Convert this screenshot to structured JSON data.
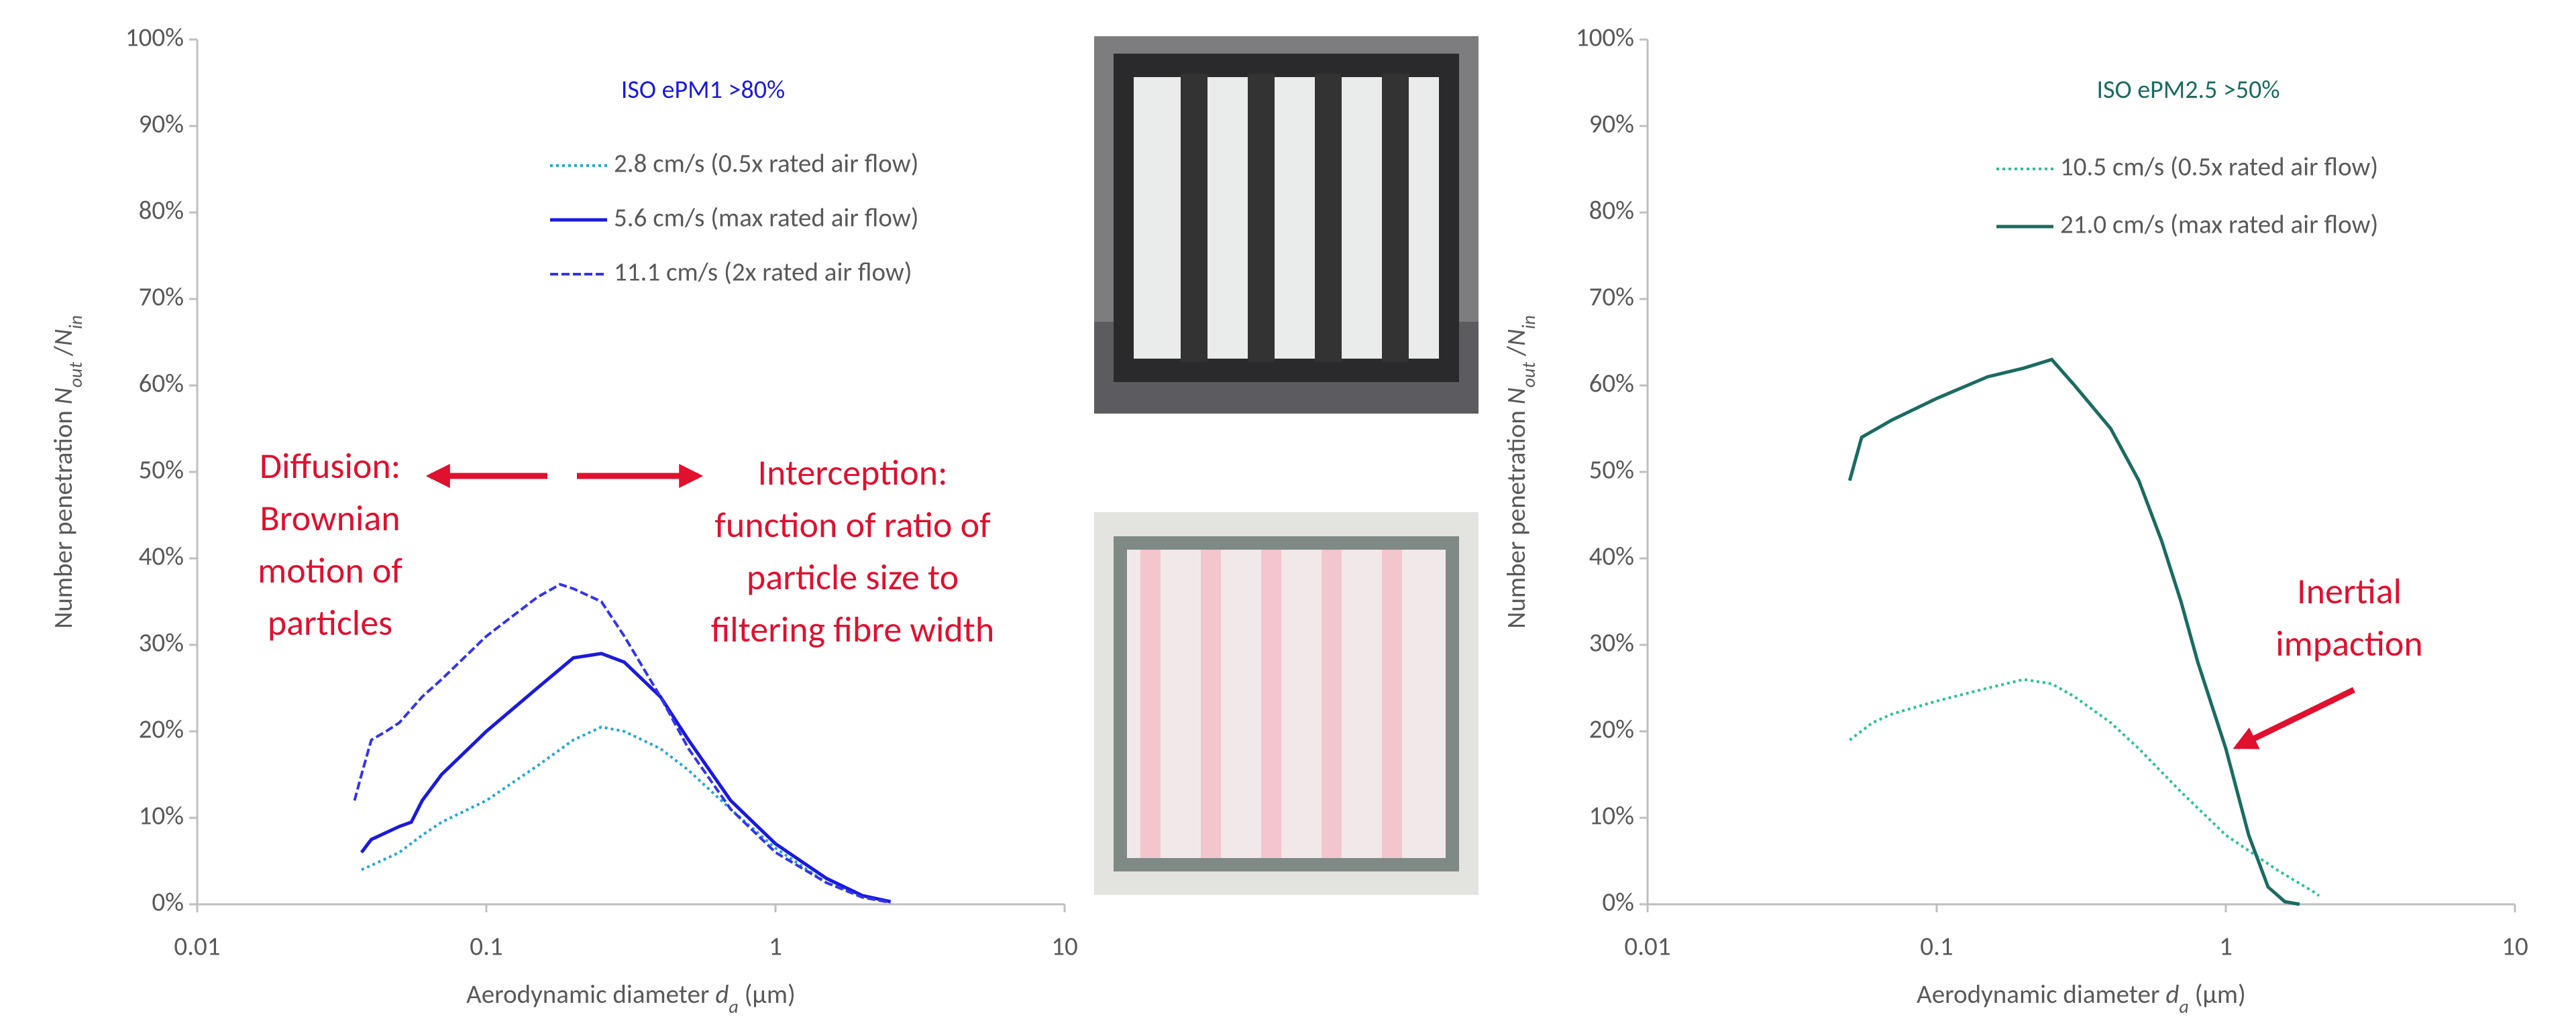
{
  "chart_data": [
    {
      "type": "line",
      "title": "ISO ePM1 >80%",
      "title_color": "#1a1adc",
      "log_x": true,
      "grid": false,
      "xlim": [
        0.01,
        10
      ],
      "xticks": [
        0.01,
        0.1,
        1,
        10
      ],
      "ylim": [
        0,
        100
      ],
      "yticks": [
        {
          "value": 0,
          "label": "0%"
        },
        {
          "value": 10,
          "label": "10%"
        },
        {
          "value": 20,
          "label": "20%"
        },
        {
          "value": 30,
          "label": "30%"
        },
        {
          "value": 40,
          "label": "40%"
        },
        {
          "value": 50,
          "label": "50%"
        },
        {
          "value": 60,
          "label": "60%"
        },
        {
          "value": 70,
          "label": "70%"
        },
        {
          "value": 80,
          "label": "80%"
        },
        {
          "value": 90,
          "label": "90%"
        },
        {
          "value": 100,
          "label": "100%"
        }
      ],
      "xlabel": [
        {
          "text": "Aerodynamic diameter "
        },
        {
          "text": "d",
          "style": "italic"
        },
        {
          "text": "a",
          "style": "italic-sub"
        },
        {
          "text": " (µm)"
        }
      ],
      "ylabel": [
        {
          "text": "Number penetration "
        },
        {
          "text": "N",
          "style": "italic"
        },
        {
          "text": "out",
          "style": "italic-sub"
        },
        {
          "text": " /"
        },
        {
          "text": "N",
          "style": "italic"
        },
        {
          "text": "in",
          "style": "italic-sub"
        }
      ],
      "series": [
        {
          "name": "2.8 cm/s (0.5x rated air flow)",
          "color": "#1ea7d8",
          "dash": "dotted",
          "x": [
            0.037,
            0.04,
            0.05,
            0.06,
            0.07,
            0.1,
            0.15,
            0.2,
            0.25,
            0.3,
            0.4,
            0.5,
            0.7,
            1,
            1.5,
            2,
            2.5
          ],
          "values": [
            4,
            4.5,
            6,
            8,
            9.5,
            12,
            16,
            19,
            20.5,
            20,
            18,
            15.5,
            11,
            6.5,
            2.5,
            1,
            0.3
          ]
        },
        {
          "name": "5.6 cm/s (max rated air flow)",
          "color": "#1a1adc",
          "dash": "solid",
          "x": [
            0.037,
            0.04,
            0.05,
            0.055,
            0.06,
            0.07,
            0.1,
            0.15,
            0.2,
            0.25,
            0.3,
            0.4,
            0.5,
            0.7,
            1,
            1.5,
            2,
            2.5
          ],
          "values": [
            6,
            7.5,
            9,
            9.5,
            12,
            15,
            20,
            25,
            28.5,
            29,
            28,
            24,
            19,
            12,
            7,
            3,
            1,
            0.3
          ]
        },
        {
          "name": "11.1 cm/s (2x rated air flow)",
          "color": "#3333ee",
          "dash": "dashed",
          "x": [
            0.035,
            0.037,
            0.04,
            0.045,
            0.05,
            0.06,
            0.07,
            0.1,
            0.15,
            0.18,
            0.2,
            0.25,
            0.3,
            0.4,
            0.5,
            0.7,
            1,
            1.5,
            2,
            2.5
          ],
          "values": [
            12,
            15,
            19,
            20,
            21,
            24,
            26,
            31,
            35.5,
            37,
            36.5,
            35,
            31,
            24,
            18,
            11,
            6,
            2.5,
            0.8,
            0.2
          ]
        }
      ],
      "annotations": [
        {
          "lines": [
            "Diffusion:",
            "Brownian",
            "motion of",
            "particles"
          ],
          "color": "#e0102f"
        },
        {
          "lines": [
            "Interception:",
            "function of ratio of",
            "particle size to",
            "filtering fibre width"
          ],
          "color": "#e0102f"
        }
      ]
    },
    {
      "type": "line",
      "title": "ISO ePM2.5 >50%",
      "title_color": "#1b6b62",
      "log_x": true,
      "grid": false,
      "xlim": [
        0.01,
        10
      ],
      "xticks": [
        0.01,
        0.1,
        1,
        10
      ],
      "ylim": [
        0,
        100
      ],
      "yticks": [
        {
          "value": 0,
          "label": "0%"
        },
        {
          "value": 10,
          "label": "10%"
        },
        {
          "value": 20,
          "label": "20%"
        },
        {
          "value": 30,
          "label": "30%"
        },
        {
          "value": 40,
          "label": "40%"
        },
        {
          "value": 50,
          "label": "50%"
        },
        {
          "value": 60,
          "label": "60%"
        },
        {
          "value": 70,
          "label": "70%"
        },
        {
          "value": 80,
          "label": "80%"
        },
        {
          "value": 90,
          "label": "90%"
        },
        {
          "value": 100,
          "label": "100%"
        }
      ],
      "xlabel": [
        {
          "text": "Aerodynamic diameter "
        },
        {
          "text": "d",
          "style": "italic"
        },
        {
          "text": "a",
          "style": "italic-sub"
        },
        {
          "text": " (µm)"
        }
      ],
      "ylabel": [
        {
          "text": "Number penetration "
        },
        {
          "text": "N",
          "style": "italic"
        },
        {
          "text": "out",
          "style": "italic-sub"
        },
        {
          "text": " /"
        },
        {
          "text": "N",
          "style": "italic"
        },
        {
          "text": "in",
          "style": "italic-sub"
        }
      ],
      "series": [
        {
          "name": "10.5 cm/s (0.5x rated air flow)",
          "color": "#22c593",
          "dash": "dotted",
          "x": [
            0.05,
            0.06,
            0.07,
            0.1,
            0.15,
            0.2,
            0.25,
            0.3,
            0.4,
            0.5,
            0.7,
            1,
            1.5,
            2,
            2.1
          ],
          "values": [
            19,
            21,
            22,
            23.5,
            25,
            26,
            25.5,
            24,
            21,
            18,
            13,
            8,
            4,
            1.5,
            1
          ]
        },
        {
          "name": "21.0 cm/s (max rated air flow)",
          "color": "#1b6b62",
          "dash": "solid",
          "x": [
            0.05,
            0.055,
            0.07,
            0.1,
            0.15,
            0.2,
            0.25,
            0.3,
            0.4,
            0.5,
            0.6,
            0.7,
            0.8,
            1,
            1.2,
            1.4,
            1.6,
            1.8
          ],
          "values": [
            49,
            54,
            56,
            58.5,
            61,
            62,
            63,
            60,
            55,
            49,
            42,
            35,
            28,
            18,
            8,
            2,
            0.3,
            0
          ]
        }
      ],
      "annotations": [
        {
          "lines": [
            "Inertial",
            "impaction"
          ],
          "color": "#e0102f"
        }
      ]
    }
  ]
}
